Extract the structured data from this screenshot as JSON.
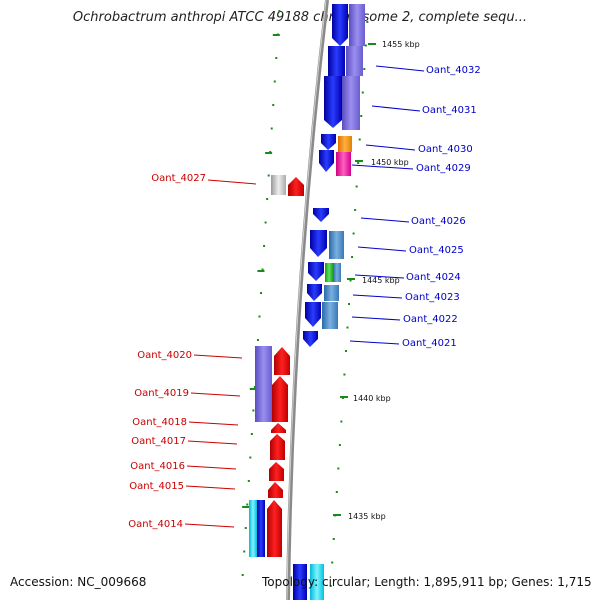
{
  "title": "Ochrobactrum anthropi ATCC 49188 chromosome 2, complete sequ...",
  "footer": {
    "accession": "Accession: NC_009668",
    "topology": "Topology: circular; Length: 1,895,911 bp; Genes: 1,715"
  },
  "colors": {
    "backbone": "#8a8a8a",
    "tick": "#1a8a1a",
    "right_label": "#0000cc",
    "left_label": "#cc0000"
  },
  "kbp_marks": [
    "1455 kbp",
    "1450 kbp",
    "1445 kbp",
    "1440 kbp",
    "1435 kbp"
  ],
  "genes_right": [
    "Oant_4032",
    "Oant_4031",
    "Oant_4030",
    "Oant_4029",
    "Oant_4026",
    "Oant_4025",
    "Oant_4024",
    "Oant_4023",
    "Oant_4022",
    "Oant_4021"
  ],
  "genes_left": [
    "Oant_4027",
    "Oant_4020",
    "Oant_4019",
    "Oant_4018",
    "Oant_4017",
    "Oant_4016",
    "Oant_4015",
    "Oant_4014"
  ]
}
